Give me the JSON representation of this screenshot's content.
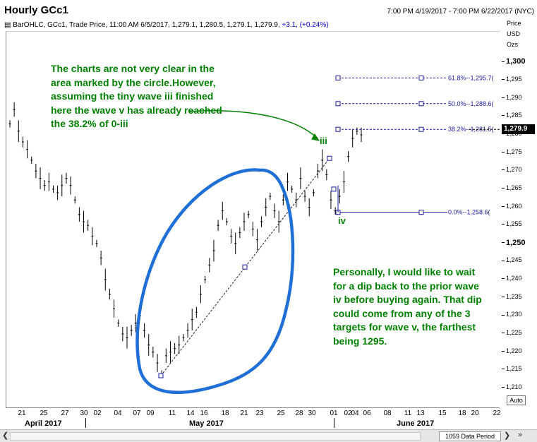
{
  "header": {
    "title": "Hourly GCc1",
    "date_range": "7:00 PM 4/19/2017 - 7:00 PM 6/22/2017 (NYC)",
    "legend_prefix": "BarOHLC, GCc1, Trade Price,",
    "legend_values": "11:00 AM 6/5/2017, 1,279.1, 1,280.5, 1,279.1, 1,279.9,",
    "legend_change": "+3.1, (+0.24%)"
  },
  "axis_header": {
    "line1": "Price",
    "line2": "USD",
    "line3": "Ozs"
  },
  "current_price_label": "1,279.9",
  "auto_button": "Auto",
  "data_period": "1059 Data Period",
  "notes": {
    "left": "The charts are not very clear in the area marked by the circle.However, assuming the tiny wave iii finished here the wave v has already reached the 38.2% of 0-iii",
    "right": "Personally, I would like to wait for a dip back to the prior wave iv before buying again. That dip could come from any of the 3 targets for wave v, the farthest being 1295."
  },
  "wave_labels": {
    "iii": "iii",
    "iv": "iv"
  },
  "fib_levels": [
    {
      "pct": 0.618,
      "price": 1295.7,
      "label": "61.8%--1,295.7(",
      "color": "#1a1aa0"
    },
    {
      "pct": 0.5,
      "price": 1288.6,
      "label": "50.0%--1,288.6(",
      "color": "#1a1aa0"
    },
    {
      "pct": 0.382,
      "price": 1281.5,
      "label": "38.2%--1,281.5(",
      "color": "#1a1aa0"
    },
    {
      "pct": 0.0,
      "price": 1258.6,
      "label": "0.0%--1,258.6(",
      "color": "#1a1aa0"
    }
  ],
  "colors": {
    "circle": "#1f6fd6",
    "fib": "#1a1aa0",
    "annotation": "#008000",
    "arrow": "#008000"
  },
  "chart_data": {
    "type": "bar",
    "title": "Hourly GCc1",
    "ylabel": "Price USD Ozs",
    "ylim": [
      1208,
      1302
    ],
    "yticks": [
      1210,
      1215,
      1220,
      1225,
      1230,
      1235,
      1240,
      1245,
      1250,
      1255,
      1260,
      1265,
      1270,
      1275,
      1280,
      1285,
      1290,
      1295,
      1300
    ],
    "ytick_labels": [
      "1,210",
      "1,215",
      "1,220",
      "1,225",
      "1,230",
      "1,235",
      "1,240",
      "1,245",
      "1,250",
      "1,255",
      "1,260",
      "1,265",
      "1,270",
      "1,275",
      "1,280",
      "1,285",
      "1,290",
      "1,295",
      "1,300"
    ],
    "x_tick_labels": [
      "21",
      "25",
      "27",
      "30",
      "02",
      "04",
      "07",
      "09",
      "11",
      "14",
      "16",
      "18",
      "21",
      "23",
      "25",
      "28",
      "30",
      "01",
      "02",
      "04",
      "06",
      "08",
      "11",
      "13",
      "15",
      "18",
      "20",
      "22"
    ],
    "months": [
      "April 2017",
      "May 2017",
      "June 2017"
    ],
    "series": [
      {
        "values": [
          1283,
          1287,
          1281,
          1278,
          1276,
          1273,
          1270,
          1268,
          1266,
          1267,
          1265,
          1264,
          1266,
          1268,
          1266,
          1262,
          1258,
          1256,
          1255,
          1252,
          1250,
          1246,
          1240,
          1236,
          1232,
          1228,
          1225,
          1224,
          1226,
          1228,
          1230,
          1226,
          1222,
          1220,
          1217,
          1214,
          1219,
          1220,
          1221,
          1222,
          1224,
          1226,
          1229,
          1231,
          1236,
          1240,
          1244,
          1248,
          1255,
          1259,
          1256,
          1252,
          1250,
          1253,
          1256,
          1258,
          1254,
          1251,
          1256,
          1260,
          1263,
          1259,
          1256,
          1262,
          1267,
          1265,
          1262,
          1268,
          1263,
          1260,
          1264,
          1270,
          1273,
          1269,
          1262,
          1259,
          1263,
          1267,
          1274,
          1279,
          1281,
          1280
        ]
      }
    ],
    "ohlc_sample": {
      "date": "6/5/2017",
      "time": "11:00 AM",
      "open": 1279.1,
      "high": 1280.5,
      "low": 1279.1,
      "close": 1279.9,
      "change": 3.1,
      "change_pct": 0.24
    },
    "fibonacci": {
      "base": 1258.6,
      "levels": [
        0.0,
        0.382,
        0.5,
        0.618
      ],
      "prices": [
        1258.6,
        1281.5,
        1288.6,
        1295.7
      ]
    },
    "legend": "none",
    "grid": false
  }
}
